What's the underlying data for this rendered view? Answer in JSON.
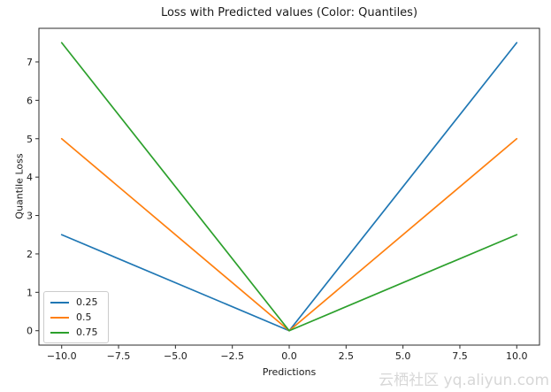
{
  "watermark": {
    "text": "云栖社区 yq.aliyun.com",
    "color": "#d7d7d7"
  },
  "colors": {
    "axis": "#2b2b2b",
    "text": "#1a1a1a",
    "legend_border": "#cccccc",
    "background": "#ffffff"
  },
  "chart_data": {
    "type": "line",
    "title": "Loss with Predicted values (Color: Quantiles)",
    "xlabel": "Predictions",
    "ylabel": "Quantile Loss",
    "xlim": [
      -11,
      11
    ],
    "ylim": [
      -0.375,
      7.875
    ],
    "grid": false,
    "legend_position": "lower left",
    "x_ticks": [
      -10.0,
      -7.5,
      -5.0,
      -2.5,
      0.0,
      2.5,
      5.0,
      7.5,
      10.0
    ],
    "x_tick_labels": [
      "−10.0",
      "−7.5",
      "−5.0",
      "−2.5",
      "0.0",
      "2.5",
      "5.0",
      "7.5",
      "10.0"
    ],
    "y_ticks": [
      0,
      1,
      2,
      3,
      4,
      5,
      6,
      7
    ],
    "y_tick_labels": [
      "0",
      "1",
      "2",
      "3",
      "4",
      "5",
      "6",
      "7"
    ],
    "x": [
      -10,
      0,
      10
    ],
    "series": [
      {
        "name": "0.25",
        "color": "#1f77b4",
        "values": [
          2.5,
          0,
          7.5
        ]
      },
      {
        "name": "0.5",
        "color": "#ff7f0e",
        "values": [
          5.0,
          0,
          5.0
        ]
      },
      {
        "name": "0.75",
        "color": "#2ca02c",
        "values": [
          7.5,
          0,
          2.5
        ]
      }
    ]
  }
}
